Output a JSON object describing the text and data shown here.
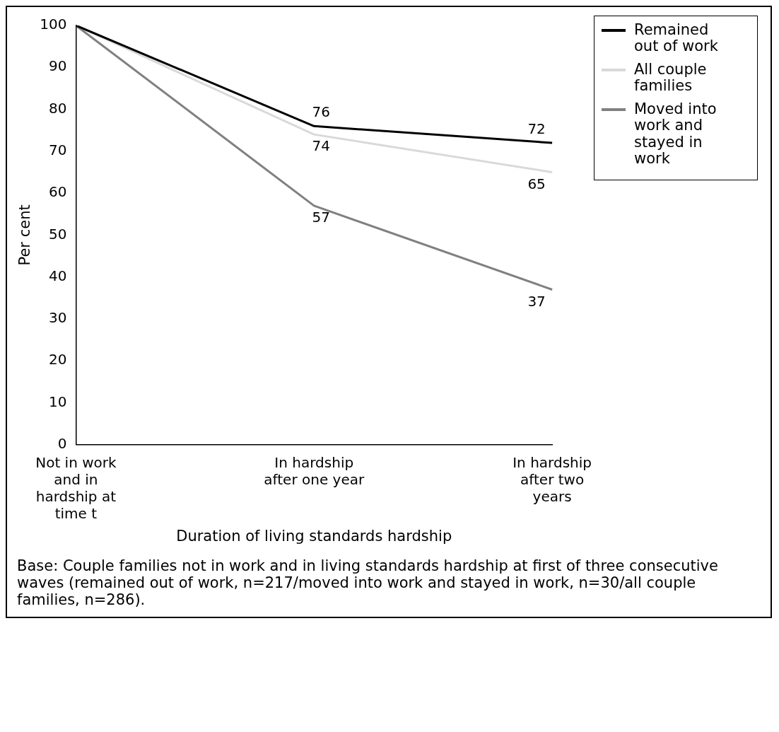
{
  "chart_data": {
    "type": "line",
    "xlabel": "Duration of living standards hardship",
    "ylabel": "Per cent",
    "categories": [
      "Not in work and in hardship at time t",
      "In hardship after one year",
      "In hardship after two years"
    ],
    "series": [
      {
        "name": "Remained out of work",
        "color": "#000000",
        "values": [
          100,
          76,
          72
        ],
        "value_labels": [
          null,
          "76",
          "72"
        ]
      },
      {
        "name": "All couple families",
        "color": "#d9d9d9",
        "values": [
          100,
          74,
          65
        ],
        "value_labels": [
          null,
          "74",
          "65"
        ]
      },
      {
        "name": "Moved into work and stayed in work",
        "color": "#808080",
        "values": [
          100,
          57,
          37
        ],
        "value_labels": [
          null,
          "57",
          "37"
        ]
      }
    ],
    "ylim": [
      0,
      100
    ],
    "yticks": [
      0,
      10,
      20,
      30,
      40,
      50,
      60,
      70,
      80,
      90,
      100
    ],
    "grid": false,
    "legend": "top right",
    "marker": "none",
    "line_style": "solid",
    "annotations": [
      "Base: Couple families not in work and in living standards hardship at first of three consecutive waves (remained out of work, n=217/moved into work and stayed in work, n=30/all couple families, n=286)."
    ]
  }
}
